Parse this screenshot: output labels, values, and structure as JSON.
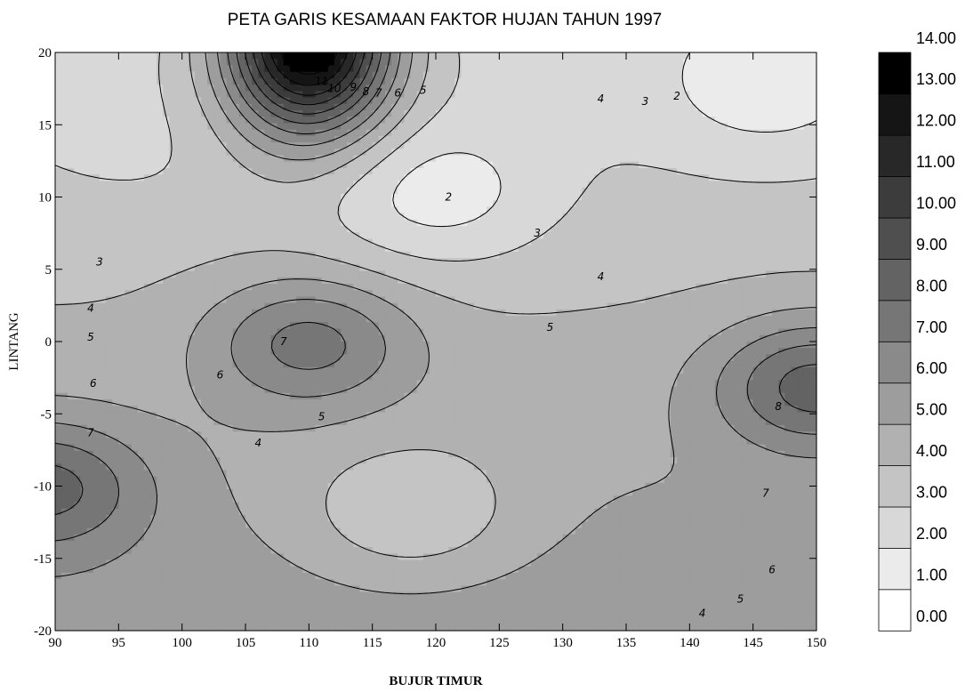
{
  "chart_data": {
    "type": "contour",
    "title": "PETA GARIS KESAMAAN FAKTOR HUJAN TAHUN 1997",
    "xlabel": "BUJUR TIMUR",
    "ylabel": "LINTANG",
    "xlim": [
      90,
      150
    ],
    "ylim": [
      -20,
      20
    ],
    "x_ticks": [
      "90",
      "95",
      "100",
      "105",
      "110",
      "115",
      "120",
      "125",
      "130",
      "135",
      "140",
      "145",
      "150"
    ],
    "y_ticks": [
      "20",
      "15",
      "10",
      "5",
      "0",
      "-5",
      "-10",
      "-15",
      "-20"
    ],
    "colorbar": {
      "levels": [
        "0.00",
        "1.00",
        "2.00",
        "3.00",
        "4.00",
        "5.00",
        "6.00",
        "7.00",
        "8.00",
        "9.00",
        "10.00",
        "11.00",
        "12.00",
        "13.00",
        "14.00"
      ],
      "colors": [
        "#ffffff",
        "#ebebeb",
        "#d8d8d8",
        "#c4c4c4",
        "#b1b1b1",
        "#9d9d9d",
        "#8a8a8a",
        "#767676",
        "#636363",
        "#4f4f4f",
        "#3c3c3c",
        "#282828",
        "#151515",
        "#000000"
      ]
    },
    "features": [
      {
        "kind": "low",
        "x": 120,
        "y": 10,
        "value": 1.5
      },
      {
        "kind": "low",
        "x": 146,
        "y": 17,
        "value": 1.5
      },
      {
        "kind": "high",
        "x": 110,
        "y": 21,
        "value": 14.5
      },
      {
        "kind": "high",
        "x": 110,
        "y": 0,
        "value": 7.4
      },
      {
        "kind": "high",
        "x": 150,
        "y": -3,
        "value": 8.5
      },
      {
        "kind": "high",
        "x": 89,
        "y": -10,
        "value": 8.5
      },
      {
        "kind": "low",
        "x": 118,
        "y": -12,
        "value": 3.2
      },
      {
        "kind": "low",
        "x": 96,
        "y": 13,
        "value": 2.8
      }
    ],
    "contour_labels": [
      {
        "text": "11",
        "x": 111,
        "y": 18
      },
      {
        "text": "10",
        "x": 112,
        "y": 17.5
      },
      {
        "text": "9",
        "x": 113.5,
        "y": 17.6
      },
      {
        "text": "8",
        "x": 114.5,
        "y": 17.3
      },
      {
        "text": "7",
        "x": 115.5,
        "y": 17.2
      },
      {
        "text": "6",
        "x": 117,
        "y": 17.2
      },
      {
        "text": "5",
        "x": 119,
        "y": 17.4
      },
      {
        "text": "4",
        "x": 133,
        "y": 16.8
      },
      {
        "text": "3",
        "x": 136.5,
        "y": 16.6
      },
      {
        "text": "2",
        "x": 139,
        "y": 17
      },
      {
        "text": "2",
        "x": 121,
        "y": 10
      },
      {
        "text": "3",
        "x": 128,
        "y": 7.5
      },
      {
        "text": "3",
        "x": 93.5,
        "y": 5.5
      },
      {
        "text": "4",
        "x": 133,
        "y": 4.5
      },
      {
        "text": "4",
        "x": 92.8,
        "y": 2.3
      },
      {
        "text": "5",
        "x": 92.8,
        "y": 0.3
      },
      {
        "text": "5",
        "x": 129,
        "y": 1
      },
      {
        "text": "7",
        "x": 108,
        "y": 0
      },
      {
        "text": "6",
        "x": 93,
        "y": -2.9
      },
      {
        "text": "6",
        "x": 103,
        "y": -2.3
      },
      {
        "text": "7",
        "x": 92.8,
        "y": -6.3
      },
      {
        "text": "5",
        "x": 111,
        "y": -5.2
      },
      {
        "text": "8",
        "x": 147,
        "y": -4.5
      },
      {
        "text": "4",
        "x": 106,
        "y": -7
      },
      {
        "text": "7",
        "x": 146,
        "y": -10.5
      },
      {
        "text": "6",
        "x": 146.5,
        "y": -15.8
      },
      {
        "text": "5",
        "x": 144,
        "y": -17.8
      },
      {
        "text": "4",
        "x": 141,
        "y": -18.8
      }
    ]
  }
}
